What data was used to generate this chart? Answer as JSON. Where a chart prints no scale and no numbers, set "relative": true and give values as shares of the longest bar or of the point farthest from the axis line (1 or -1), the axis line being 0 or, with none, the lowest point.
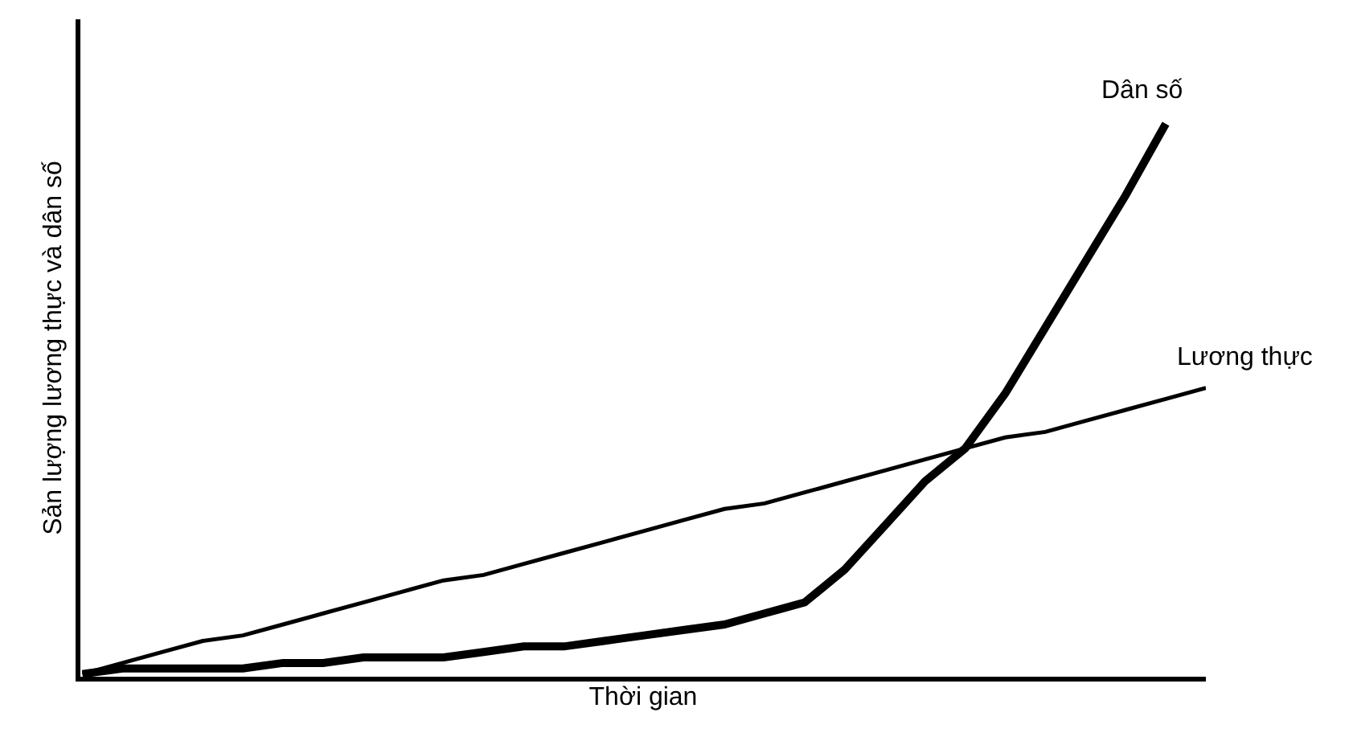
{
  "chart_data": {
    "type": "line",
    "relative": true,
    "xlabel": "Thời gian",
    "ylabel": "Sản lượng lương thực và dân số",
    "legend": false,
    "marker": "none",
    "line_style": "solid",
    "tick_labels": false,
    "categories": [
      null,
      null,
      null,
      null,
      null,
      null,
      null,
      null,
      null,
      null,
      null,
      null,
      null,
      null,
      null,
      null,
      null,
      null,
      null,
      null,
      null,
      null,
      null,
      null,
      null,
      null,
      null,
      null,
      null
    ],
    "series": [
      {
        "name": "Dân số",
        "color": "#000000",
        "values": [
          0,
          0.01,
          0.01,
          0.01,
          0.01,
          0.02,
          0.02,
          0.03,
          0.03,
          0.03,
          0.04,
          0.05,
          0.05,
          0.06,
          0.07,
          0.08,
          0.09,
          0.11,
          0.13,
          0.19,
          0.27,
          0.35,
          0.41,
          0.51,
          0.63,
          0.75,
          0.87,
          1,
          null
        ]
      },
      {
        "name": "Lương thực",
        "color": "#000000",
        "values": [
          0,
          0.02,
          0.04,
          0.06,
          0.07,
          0.09,
          0.11,
          0.13,
          0.15,
          0.17,
          0.18,
          0.2,
          0.22,
          0.24,
          0.26,
          0.28,
          0.3,
          0.31,
          0.33,
          0.35,
          0.37,
          0.39,
          0.41,
          0.43,
          0.44,
          0.46,
          0.48,
          0.5,
          0.52
        ]
      }
    ]
  }
}
